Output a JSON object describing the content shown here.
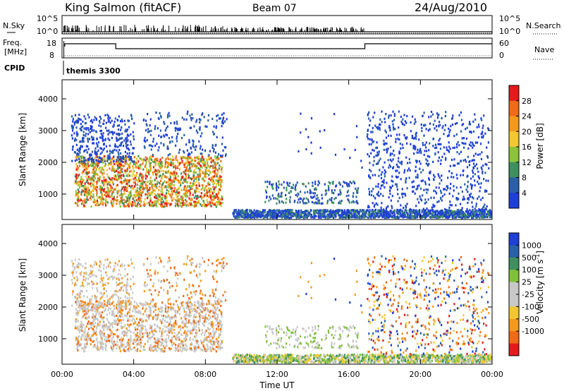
{
  "header": {
    "station": "King Salmon (fitACF)",
    "beam": "Beam 07",
    "date": "24/Aug/2010"
  },
  "top_panels": {
    "nsky_label": "N.Sky",
    "nsearch_label": "N.Search",
    "noise_ticks": [
      "10^5",
      "10^0"
    ],
    "freq_label_line1": "Freq.",
    "freq_label_line2": "[MHz]",
    "freq_ticks": [
      "18",
      "8"
    ],
    "nave_label": "Nave",
    "nave_ticks": [
      "60",
      "0"
    ],
    "cpid_label": "CPID",
    "cpid_value": "themis 3300"
  },
  "colors": {
    "power": [
      "#1f3fd6",
      "#2b5fa8",
      "#3f8f5f",
      "#8cc33b",
      "#f2c832",
      "#f39a1e",
      "#ef6b1a",
      "#e41a1c"
    ],
    "velocity": [
      "#e41a1c",
      "#ef6b1a",
      "#f39a1e",
      "#f2c832",
      "#c8c8c8",
      "#c8c8c8",
      "#7fc13a",
      "#3f8f5f",
      "#2b5fa8",
      "#1f3fd6"
    ]
  },
  "chart_data": [
    {
      "type": "heatmap",
      "panel": "power",
      "ylabel": "Slant Range [km]",
      "yticks": [
        1000,
        2000,
        3000,
        4000
      ],
      "ylim": [
        200,
        4600
      ],
      "xlim": [
        0,
        24
      ],
      "colorbar_label": "Power [dB]",
      "colorbar_ticks": [
        4,
        8,
        12,
        16,
        20,
        24,
        28
      ],
      "colorbar_range": [
        0,
        32
      ]
    },
    {
      "type": "heatmap",
      "panel": "velocity",
      "ylabel": "Slant Range [km]",
      "yticks": [
        1000,
        2000,
        3000,
        4000
      ],
      "ylim": [
        200,
        4600
      ],
      "xlim": [
        0,
        24
      ],
      "xlabel": "Time UT",
      "xticks": [
        "00:00",
        "04:00",
        "08:00",
        "12:00",
        "16:00",
        "20:00",
        "00:00"
      ],
      "colorbar_label": "Velocity [m s",
      "colorbar_label_sup": "-1",
      "colorbar_ticks": [
        "1000",
        "500",
        "100",
        "25",
        "-25",
        "-100",
        "-500",
        "-1000"
      ]
    }
  ]
}
